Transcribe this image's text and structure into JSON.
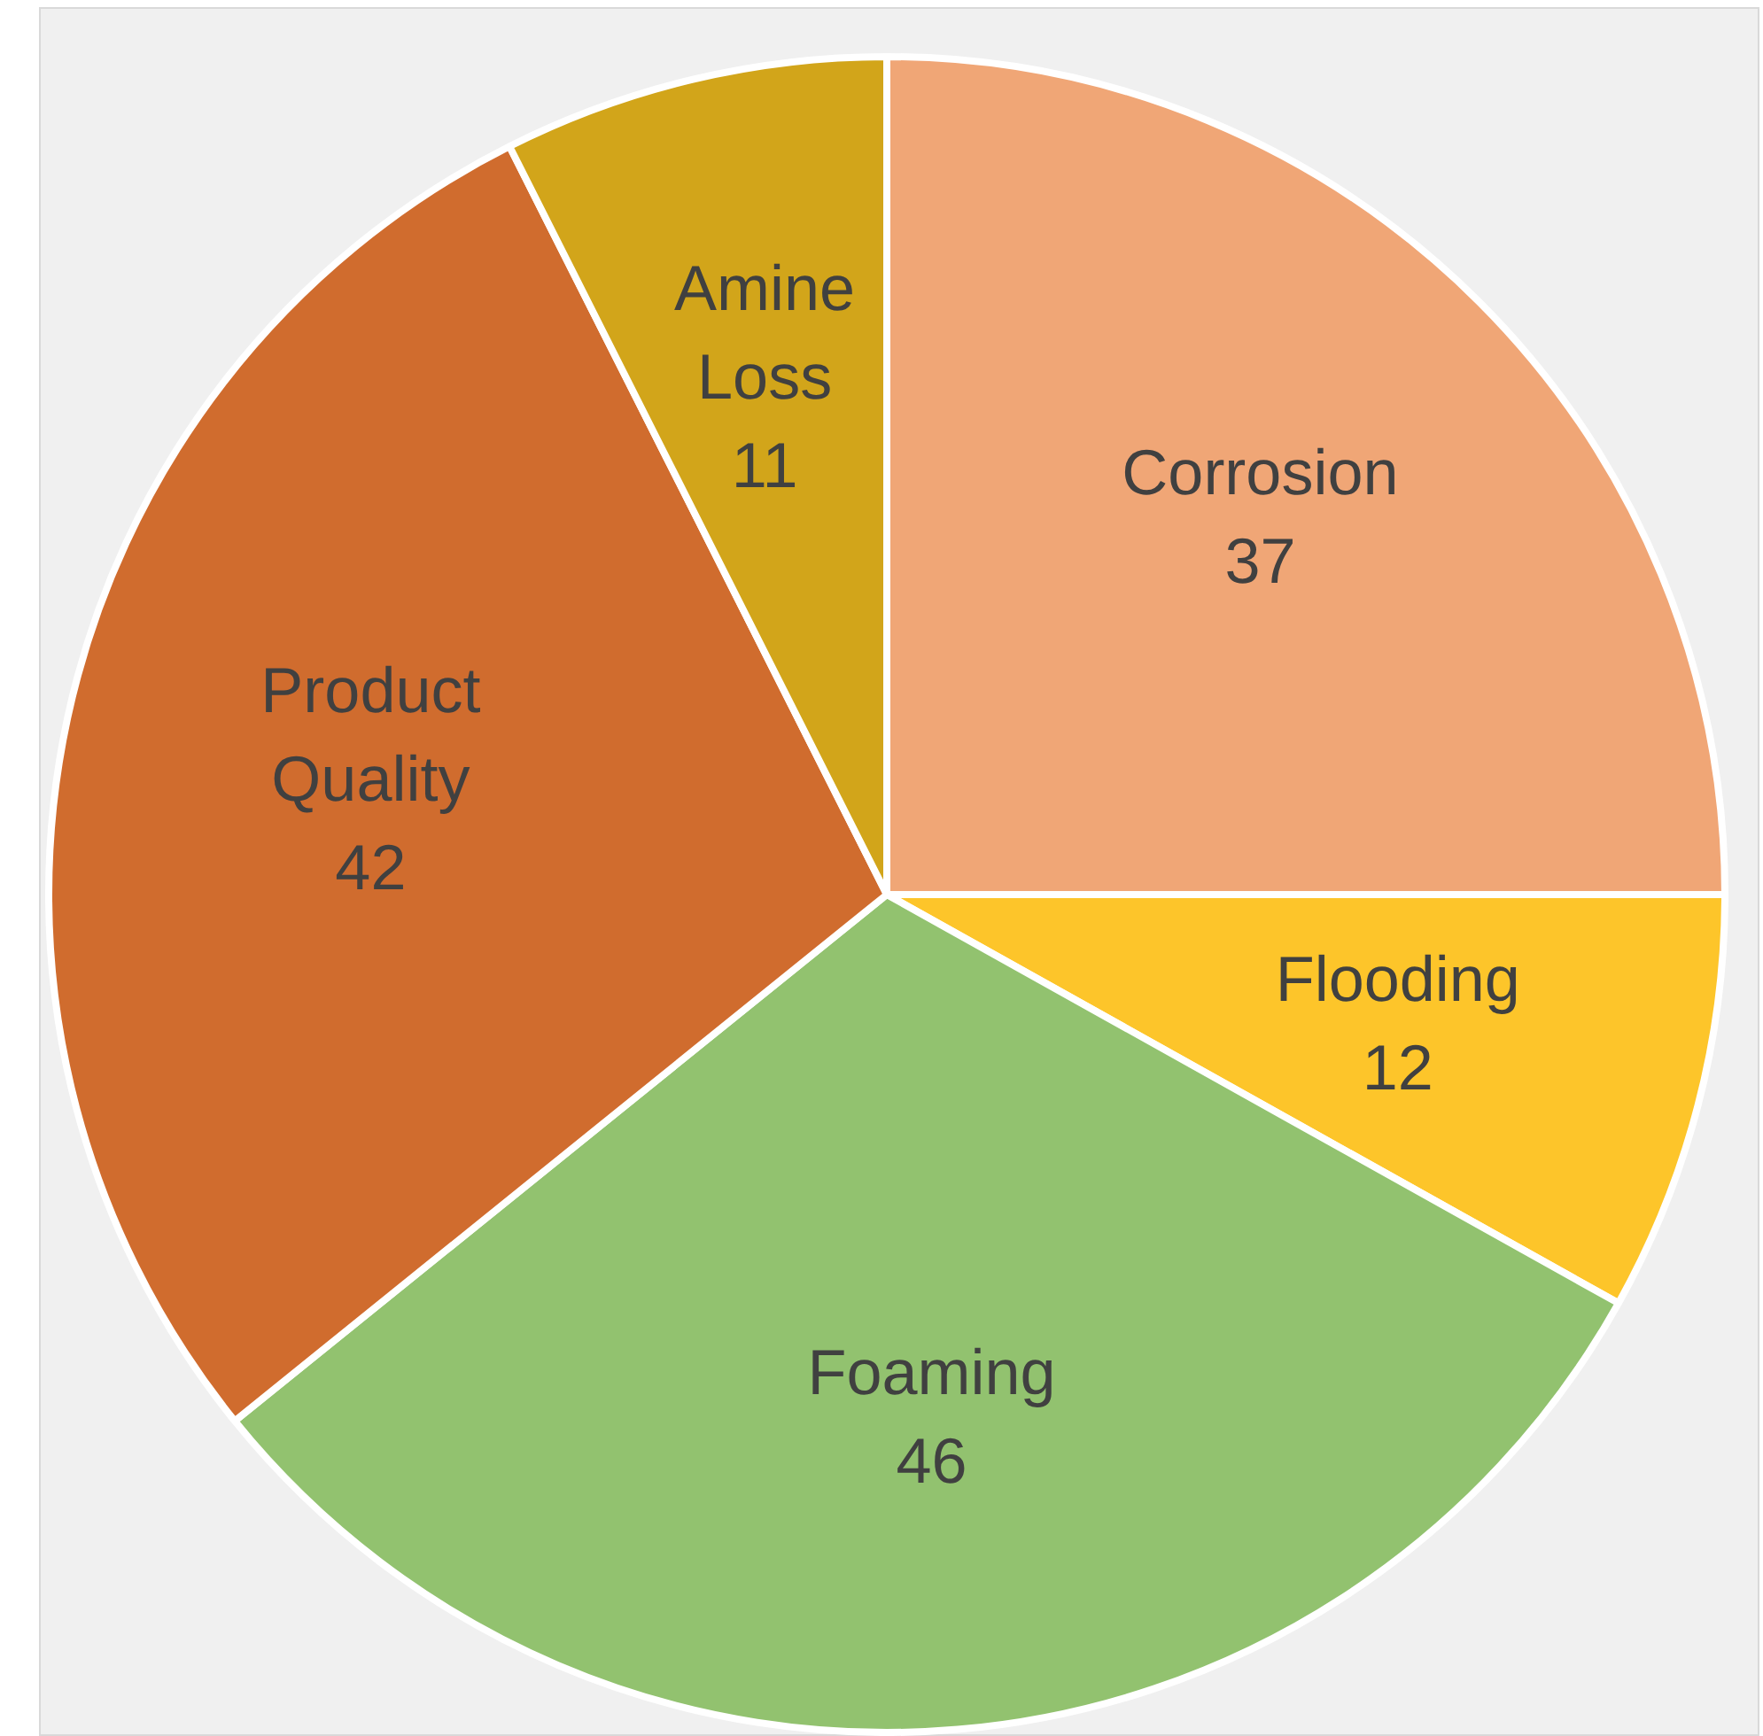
{
  "chart_data": {
    "type": "pie",
    "categories": [
      "Corrosion",
      "Flooding",
      "Foaming",
      "Product Quality",
      "Amine Loss"
    ],
    "values": [
      37,
      12,
      46,
      42,
      11
    ],
    "colors": [
      "#f0a676",
      "#fdc52a",
      "#92c26f",
      "#d06c2e",
      "#d2a51a"
    ],
    "data_labels": true,
    "legend": false
  }
}
